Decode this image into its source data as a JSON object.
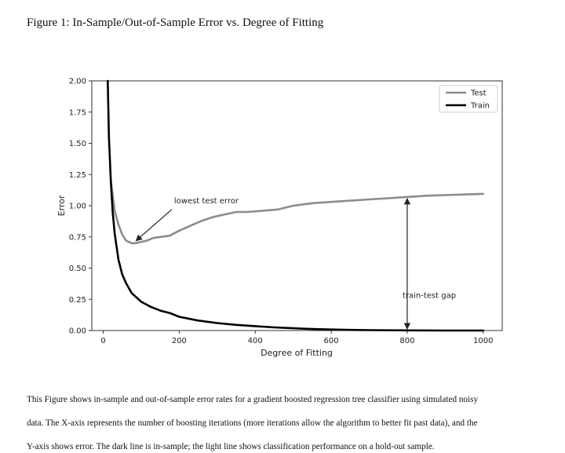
{
  "figure_title": "Figure 1: In-Sample/Out-of-Sample Error vs. Degree of Fitting",
  "caption": {
    "lines": [
      "This Figure shows in-sample and out-of-sample error rates for a gradient boosted regression tree classifier using simulated noisy",
      "data. The X-axis represents the number of boosting iterations (more iterations allow the algorithm to better fit past data), and the",
      "Y-axis shows error.  The dark line is in-sample; the light line shows classification performance on a hold-out sample."
    ]
  },
  "colors": {
    "test": "#8c8c8c",
    "train": "#000000",
    "axis": "#333333",
    "annotation": "#222222"
  },
  "chart_data": {
    "type": "line",
    "title": "",
    "xlabel": "Degree of Fitting",
    "ylabel": "Error",
    "xlim": [
      -30,
      1050
    ],
    "ylim": [
      0,
      2.0
    ],
    "xticks": [
      0,
      200,
      400,
      600,
      800,
      1000
    ],
    "xtick_labels": [
      "0",
      "200",
      "400",
      "600",
      "800",
      "1000"
    ],
    "yticks": [
      0,
      0.25,
      0.5,
      0.75,
      1.0,
      1.25,
      1.5,
      1.75,
      2.0
    ],
    "ytick_labels": [
      "0.00",
      "0.25",
      "0.50",
      "0.75",
      "1.00",
      "1.25",
      "1.50",
      "1.75",
      "2.00"
    ],
    "grid": false,
    "legend_position": "top-right",
    "series": [
      {
        "name": "Test",
        "color": "#8c8c8c",
        "x": [
          20,
          30,
          40,
          50,
          60,
          75,
          85,
          100,
          115,
          130,
          150,
          175,
          200,
          230,
          260,
          290,
          320,
          350,
          380,
          420,
          460,
          500,
          550,
          600,
          650,
          700,
          750,
          800,
          850,
          900,
          950,
          1000
        ],
        "y": [
          1.2,
          0.96,
          0.85,
          0.77,
          0.72,
          0.7,
          0.7,
          0.71,
          0.72,
          0.74,
          0.75,
          0.76,
          0.8,
          0.84,
          0.88,
          0.91,
          0.93,
          0.95,
          0.95,
          0.96,
          0.97,
          1.0,
          1.02,
          1.03,
          1.04,
          1.05,
          1.06,
          1.07,
          1.08,
          1.085,
          1.09,
          1.095
        ]
      },
      {
        "name": "Train",
        "color": "#000000",
        "x": [
          12,
          15,
          20,
          25,
          30,
          40,
          50,
          60,
          75,
          100,
          125,
          150,
          175,
          200,
          250,
          300,
          350,
          400,
          450,
          500,
          550,
          600,
          650,
          700,
          800,
          900,
          1000
        ],
        "y": [
          2.0,
          1.55,
          1.2,
          0.95,
          0.78,
          0.57,
          0.45,
          0.38,
          0.3,
          0.23,
          0.19,
          0.16,
          0.14,
          0.11,
          0.08,
          0.06,
          0.045,
          0.035,
          0.025,
          0.018,
          0.012,
          0.008,
          0.005,
          0.003,
          0.001,
          0.0,
          0.0
        ]
      }
    ],
    "annotations": [
      {
        "text": "lowest test error",
        "points_to": {
          "x": 82,
          "y": 0.7
        },
        "text_at": {
          "x": 230,
          "y": 1.02
        }
      },
      {
        "text": "train-test gap",
        "x": 800,
        "y_from": 0.0,
        "y_to": 1.07,
        "text_at": {
          "x": 858,
          "y": 0.26
        }
      }
    ]
  }
}
